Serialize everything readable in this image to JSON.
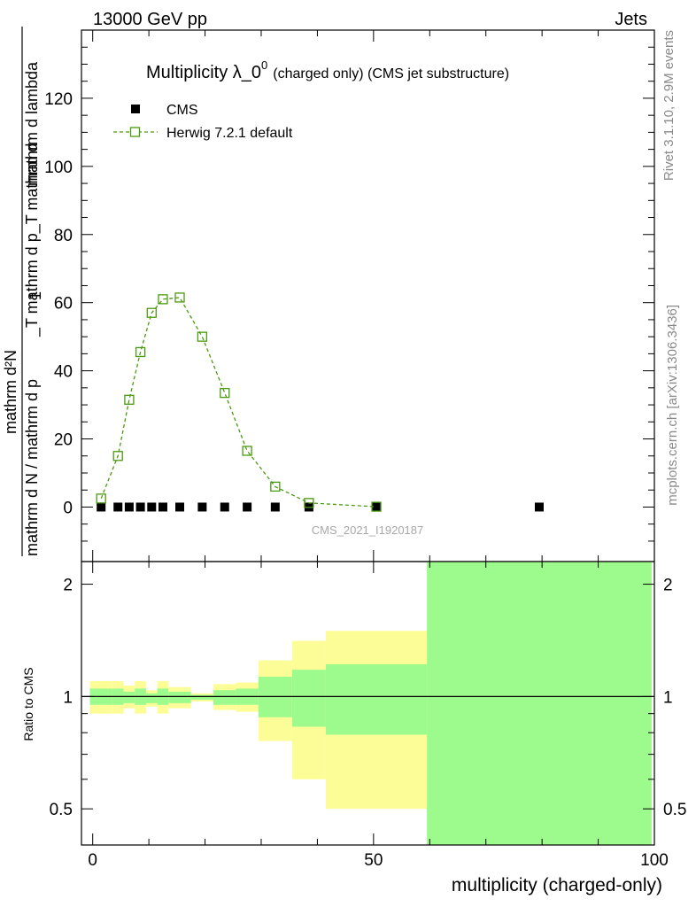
{
  "header": {
    "left": "13000 GeV pp",
    "right": "Jets"
  },
  "side": {
    "top": "Rivet 3.1.10,  2.9M events",
    "bottom": "mcplots.cern.ch [arXiv:1306.3436]"
  },
  "colors": {
    "mc": "#4a9a10",
    "cms": "#000000",
    "band_inner": "#9cfb8c",
    "band_outer": "#fdfd98"
  },
  "chart_data": [
    {
      "type": "scatter",
      "title_main": "Multiplicity λ_0",
      "title_sup": "0",
      "title_rest": "(charged only) (CMS jet substructure)",
      "ylabel_lines": [
        "mathrm d N / mathrm d p",
        "mathrm d lambda"
      ],
      "ylabel_text": "1 / mathrm d N / mathrm d p_T mathrm d p_T mathrm d lambda · mathrm d²N",
      "analysis": "CMS_2021_I1920187",
      "xlim": [
        -2,
        100
      ],
      "ylim": [
        -16,
        140
      ],
      "yticks": [
        0,
        20,
        40,
        60,
        80,
        100,
        120
      ],
      "yticklabels": [
        "0",
        "20",
        "40",
        "60",
        "80",
        "100",
        "120"
      ],
      "legend": [
        {
          "label": "CMS",
          "marker": "filled-square"
        },
        {
          "label": "Herwig 7.2.1 default",
          "marker": "open-square-dashed"
        }
      ],
      "series": [
        {
          "name": "CMS",
          "x": [
            1.5,
            4.5,
            6.5,
            8.5,
            10.5,
            12.5,
            15.5,
            19.5,
            23.5,
            27.5,
            32.5,
            38.5,
            50.5,
            79.5
          ],
          "y": [
            0,
            0,
            0,
            0,
            0,
            0,
            0,
            0,
            0,
            0,
            0,
            0,
            0,
            0
          ]
        },
        {
          "name": "Herwig 7.2.1 default",
          "x": [
            1.5,
            4.5,
            6.5,
            8.5,
            10.5,
            12.5,
            15.5,
            19.5,
            23.5,
            27.5,
            32.5,
            38.5,
            50.5
          ],
          "y": [
            2.5,
            15,
            31.5,
            45.5,
            57,
            61,
            61.5,
            50,
            33.5,
            16.5,
            6,
            1.2,
            0.1
          ]
        }
      ]
    },
    {
      "type": "area",
      "ylabel": "Ratio to CMS",
      "xlabel": "multiplicity (charged-only)",
      "xlim": [
        -2,
        100
      ],
      "ylim": [
        0.4,
        2.3
      ],
      "yticks": [
        0.5,
        1,
        2
      ],
      "yticklabels": [
        "0.5",
        "1",
        "2"
      ],
      "xticks": [
        0,
        50,
        100
      ],
      "xticklabels": [
        "0",
        "50",
        "100"
      ],
      "reference_line": 1,
      "bands": [
        {
          "x0": -0.5,
          "x1": 3.5,
          "inner": [
            0.95,
            1.05
          ],
          "outer": [
            0.9,
            1.1
          ]
        },
        {
          "x0": 3.5,
          "x1": 5.5,
          "inner": [
            0.95,
            1.05
          ],
          "outer": [
            0.9,
            1.1
          ]
        },
        {
          "x0": 5.5,
          "x1": 7.5,
          "inner": [
            0.96,
            1.03
          ],
          "outer": [
            0.93,
            1.07
          ]
        },
        {
          "x0": 7.5,
          "x1": 9.5,
          "inner": [
            0.95,
            1.05
          ],
          "outer": [
            0.9,
            1.1
          ]
        },
        {
          "x0": 9.5,
          "x1": 11.5,
          "inner": [
            0.96,
            1.02
          ],
          "outer": [
            0.94,
            1.04
          ]
        },
        {
          "x0": 11.5,
          "x1": 13.5,
          "inner": [
            0.95,
            1.05
          ],
          "outer": [
            0.9,
            1.1
          ]
        },
        {
          "x0": 13.5,
          "x1": 17.5,
          "inner": [
            0.96,
            1.03
          ],
          "outer": [
            0.93,
            1.06
          ]
        },
        {
          "x0": 17.5,
          "x1": 21.5,
          "inner": [
            0.98,
            1.01
          ],
          "outer": [
            0.97,
            1.02
          ]
        },
        {
          "x0": 21.5,
          "x1": 25.5,
          "inner": [
            0.95,
            1.04
          ],
          "outer": [
            0.92,
            1.08
          ]
        },
        {
          "x0": 25.5,
          "x1": 29.5,
          "inner": [
            0.95,
            1.05
          ],
          "outer": [
            0.91,
            1.09
          ]
        },
        {
          "x0": 29.5,
          "x1": 35.5,
          "inner": [
            0.88,
            1.13
          ],
          "outer": [
            0.76,
            1.25
          ]
        },
        {
          "x0": 35.5,
          "x1": 41.5,
          "inner": [
            0.83,
            1.18
          ],
          "outer": [
            0.6,
            1.41
          ]
        },
        {
          "x0": 41.5,
          "x1": 59.5,
          "inner": [
            0.79,
            1.22
          ],
          "outer": [
            0.5,
            1.5
          ]
        },
        {
          "x0": 59.5,
          "x1": 99.5,
          "inner": [
            0.4,
            2.3
          ],
          "outer": [
            0.4,
            2.3
          ]
        }
      ]
    }
  ]
}
